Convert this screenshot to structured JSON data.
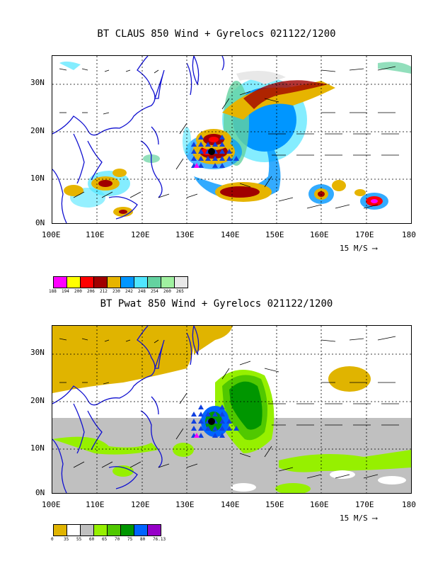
{
  "panels": [
    {
      "title": "BT CLAUS 850 Wind + Gyrelocs 021122/1200",
      "lat_labels": [
        "30N",
        "20N",
        "10N",
        "0N"
      ],
      "lon_labels": [
        "100E",
        "110E",
        "120E",
        "130E",
        "140E",
        "150E",
        "160E",
        "170E",
        "180"
      ],
      "ref_vector": "15 M/S",
      "legend": {
        "values": [
          "188",
          "194",
          "200",
          "206",
          "212",
          "230",
          "242",
          "248",
          "254",
          "260",
          "265"
        ],
        "colors": [
          "#ff00ff",
          "#ffff00",
          "#ff0000",
          "#a00000",
          "#e6b400",
          "#0096ff",
          "#50e6ff",
          "#64d2a0",
          "#a0f0a0",
          "#e8e8e8"
        ]
      }
    },
    {
      "title": "BT Pwat 850 Wind + Gyrelocs 021122/1200",
      "lat_labels": [
        "30N",
        "20N",
        "10N",
        "0N"
      ],
      "lon_labels": [
        "100E",
        "110E",
        "120E",
        "130E",
        "140E",
        "150E",
        "160E",
        "170E",
        "180"
      ],
      "ref_vector": "15 M/S",
      "legend": {
        "values": [
          "0",
          "35",
          "55",
          "60",
          "65",
          "70",
          "75",
          "80",
          "76.13"
        ],
        "colors": [
          "#e0b400",
          "#ffffff",
          "#c0c0c0",
          "#96f000",
          "#50c800",
          "#009600",
          "#0064ff",
          "#9600c8"
        ]
      }
    }
  ]
}
